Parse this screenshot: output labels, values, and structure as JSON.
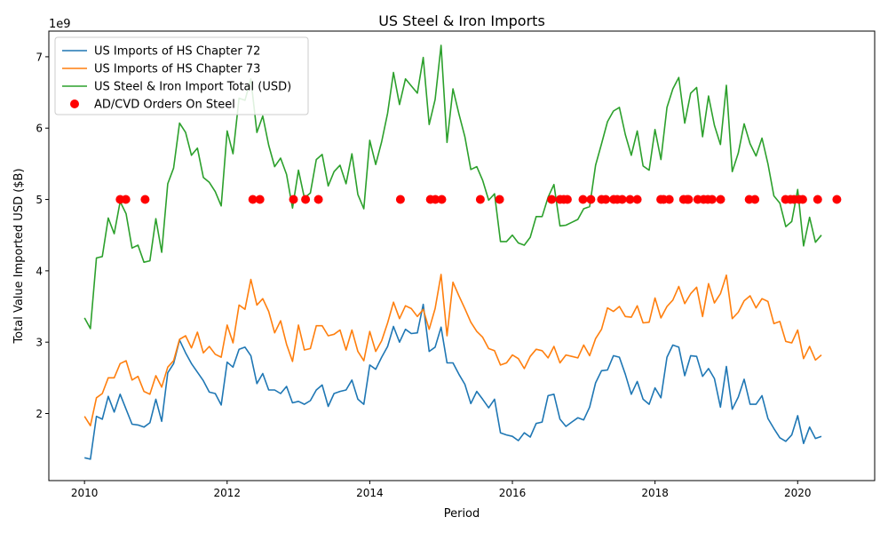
{
  "chart_data": {
    "type": "line",
    "title": "US Steel & Iron Imports",
    "xlabel": "Period",
    "ylabel": "Total Value Imported USD ($B)",
    "y_offset_text": "1e9",
    "y_scale": 1000000000,
    "xlim": [
      2009.5,
      2021.08
    ],
    "ylim": [
      1.06,
      7.36
    ],
    "x_ticks": [
      2010,
      2012,
      2014,
      2016,
      2018,
      2020
    ],
    "x_tick_labels": [
      "2010",
      "2012",
      "2014",
      "2016",
      "2018",
      "2020"
    ],
    "y_ticks": [
      2,
      3,
      4,
      5,
      6,
      7
    ],
    "y_tick_labels": [
      "2",
      "3",
      "4",
      "5",
      "6",
      "7"
    ],
    "grid": false,
    "legend_position": "top-left",
    "x": [
      2010.0,
      2010.083,
      2010.167,
      2010.25,
      2010.333,
      2010.417,
      2010.5,
      2010.583,
      2010.667,
      2010.75,
      2010.833,
      2010.917,
      2011.0,
      2011.083,
      2011.167,
      2011.25,
      2011.333,
      2011.417,
      2011.5,
      2011.583,
      2011.667,
      2011.75,
      2011.833,
      2011.917,
      2012.0,
      2012.083,
      2012.167,
      2012.25,
      2012.333,
      2012.417,
      2012.5,
      2012.583,
      2012.667,
      2012.75,
      2012.833,
      2012.917,
      2013.0,
      2013.083,
      2013.167,
      2013.25,
      2013.333,
      2013.417,
      2013.5,
      2013.583,
      2013.667,
      2013.75,
      2013.833,
      2013.917,
      2014.0,
      2014.083,
      2014.167,
      2014.25,
      2014.333,
      2014.417,
      2014.5,
      2014.583,
      2014.667,
      2014.75,
      2014.833,
      2014.917,
      2015.0,
      2015.083,
      2015.167,
      2015.25,
      2015.333,
      2015.417,
      2015.5,
      2015.583,
      2015.667,
      2015.75,
      2015.833,
      2015.917,
      2016.0,
      2016.083,
      2016.167,
      2016.25,
      2016.333,
      2016.417,
      2016.5,
      2016.583,
      2016.667,
      2016.75,
      2016.833,
      2016.917,
      2017.0,
      2017.083,
      2017.167,
      2017.25,
      2017.333,
      2017.417,
      2017.5,
      2017.583,
      2017.667,
      2017.75,
      2017.833,
      2017.917,
      2018.0,
      2018.083,
      2018.167,
      2018.25,
      2018.333,
      2018.417,
      2018.5,
      2018.583,
      2018.667,
      2018.75,
      2018.833,
      2018.917,
      2019.0,
      2019.083,
      2019.167,
      2019.25,
      2019.333,
      2019.417,
      2019.5,
      2019.583,
      2019.667,
      2019.75,
      2019.833,
      2019.917,
      2020.0,
      2020.083,
      2020.167,
      2020.25,
      2020.333
    ],
    "series": [
      {
        "name": "US Imports of HS Chapter 72",
        "color": "#1f77b4",
        "values": [
          1.38,
          1.36,
          1.96,
          1.92,
          2.24,
          2.02,
          2.27,
          2.06,
          1.85,
          1.84,
          1.81,
          1.87,
          2.2,
          1.89,
          2.57,
          2.7,
          3.03,
          2.85,
          2.7,
          2.58,
          2.46,
          2.3,
          2.28,
          2.12,
          2.72,
          2.65,
          2.9,
          2.93,
          2.81,
          2.42,
          2.56,
          2.33,
          2.33,
          2.28,
          2.38,
          2.15,
          2.17,
          2.13,
          2.18,
          2.33,
          2.4,
          2.1,
          2.28,
          2.31,
          2.33,
          2.47,
          2.2,
          2.13,
          2.68,
          2.62,
          2.79,
          2.94,
          3.22,
          3.0,
          3.18,
          3.12,
          3.13,
          3.53,
          2.87,
          2.93,
          3.21,
          2.71,
          2.71,
          2.55,
          2.41,
          2.14,
          2.31,
          2.2,
          2.08,
          2.2,
          1.73,
          1.7,
          1.68,
          1.62,
          1.73,
          1.67,
          1.86,
          1.88,
          2.25,
          2.27,
          1.92,
          1.82,
          1.88,
          1.94,
          1.91,
          2.09,
          2.43,
          2.6,
          2.61,
          2.81,
          2.79,
          2.55,
          2.27,
          2.45,
          2.2,
          2.13,
          2.36,
          2.22,
          2.79,
          2.96,
          2.93,
          2.53,
          2.81,
          2.8,
          2.52,
          2.63,
          2.49,
          2.09,
          2.66,
          2.06,
          2.23,
          2.48,
          2.13,
          2.13,
          2.25,
          1.93,
          1.79,
          1.66,
          1.61,
          1.7,
          1.97,
          1.58,
          1.81,
          1.65,
          1.68
        ]
      },
      {
        "name": "US Imports of HS Chapter 73",
        "color": "#ff7f0e",
        "values": [
          1.96,
          1.83,
          2.22,
          2.28,
          2.5,
          2.5,
          2.7,
          2.74,
          2.47,
          2.52,
          2.31,
          2.27,
          2.53,
          2.37,
          2.65,
          2.74,
          3.04,
          3.09,
          2.92,
          3.14,
          2.85,
          2.94,
          2.83,
          2.79,
          3.24,
          2.99,
          3.52,
          3.46,
          3.88,
          3.52,
          3.61,
          3.43,
          3.13,
          3.3,
          2.97,
          2.73,
          3.24,
          2.89,
          2.91,
          3.23,
          3.23,
          3.09,
          3.11,
          3.17,
          2.89,
          3.17,
          2.87,
          2.74,
          3.15,
          2.87,
          3.02,
          3.27,
          3.56,
          3.33,
          3.51,
          3.47,
          3.36,
          3.46,
          3.18,
          3.47,
          3.95,
          3.09,
          3.84,
          3.65,
          3.47,
          3.28,
          3.15,
          3.07,
          2.91,
          2.88,
          2.68,
          2.71,
          2.82,
          2.77,
          2.63,
          2.8,
          2.9,
          2.88,
          2.78,
          2.94,
          2.71,
          2.82,
          2.8,
          2.78,
          2.96,
          2.81,
          3.05,
          3.18,
          3.48,
          3.43,
          3.5,
          3.36,
          3.35,
          3.51,
          3.27,
          3.28,
          3.62,
          3.34,
          3.5,
          3.59,
          3.78,
          3.54,
          3.68,
          3.77,
          3.36,
          3.82,
          3.55,
          3.68,
          3.94,
          3.33,
          3.42,
          3.58,
          3.65,
          3.48,
          3.61,
          3.57,
          3.26,
          3.29,
          3.01,
          2.99,
          3.17,
          2.77,
          2.94,
          2.75,
          2.82
        ]
      },
      {
        "name": "US Steel & Iron Import Total (USD)",
        "color": "#2ca02c",
        "values": [
          3.34,
          3.19,
          4.18,
          4.2,
          4.74,
          4.52,
          4.97,
          4.8,
          4.32,
          4.36,
          4.12,
          4.14,
          4.73,
          4.26,
          5.22,
          5.44,
          6.07,
          5.94,
          5.62,
          5.72,
          5.31,
          5.24,
          5.11,
          4.91,
          5.96,
          5.64,
          6.42,
          6.39,
          6.69,
          5.94,
          6.17,
          5.76,
          5.46,
          5.58,
          5.35,
          4.88,
          5.41,
          5.02,
          5.09,
          5.56,
          5.63,
          5.19,
          5.39,
          5.48,
          5.22,
          5.64,
          5.07,
          4.87,
          5.83,
          5.49,
          5.81,
          6.21,
          6.78,
          6.33,
          6.69,
          6.59,
          6.49,
          6.99,
          6.05,
          6.4,
          7.16,
          5.8,
          6.55,
          6.2,
          5.88,
          5.42,
          5.46,
          5.27,
          4.99,
          5.08,
          4.41,
          4.41,
          4.5,
          4.39,
          4.36,
          4.47,
          4.76,
          4.76,
          5.03,
          5.21,
          4.63,
          4.64,
          4.68,
          4.72,
          4.87,
          4.9,
          5.48,
          5.78,
          6.09,
          6.24,
          6.29,
          5.91,
          5.62,
          5.96,
          5.47,
          5.41,
          5.98,
          5.56,
          6.29,
          6.55,
          6.71,
          6.07,
          6.49,
          6.57,
          5.88,
          6.45,
          6.04,
          5.77,
          6.6,
          5.39,
          5.65,
          6.06,
          5.78,
          5.61,
          5.86,
          5.5,
          5.05,
          4.95,
          4.62,
          4.69,
          5.14,
          4.35,
          4.75,
          4.4,
          4.5
        ]
      }
    ],
    "scatter": {
      "name": "AD/CVD Orders On Steel",
      "color": "#ff0000",
      "y": 5.0,
      "x": [
        2010.5,
        2010.58,
        2010.85,
        2012.36,
        2012.46,
        2012.93,
        2013.1,
        2013.28,
        2014.43,
        2014.85,
        2014.92,
        2015.01,
        2015.55,
        2015.82,
        2016.55,
        2016.67,
        2016.72,
        2016.77,
        2016.99,
        2017.1,
        2017.25,
        2017.31,
        2017.42,
        2017.47,
        2017.54,
        2017.65,
        2017.75,
        2018.08,
        2018.12,
        2018.2,
        2018.4,
        2018.45,
        2018.47,
        2018.6,
        2018.68,
        2018.74,
        2018.8,
        2018.92,
        2019.32,
        2019.4,
        2019.83,
        2019.9,
        2019.95,
        2020.02,
        2020.07,
        2020.28,
        2020.55
      ]
    }
  }
}
